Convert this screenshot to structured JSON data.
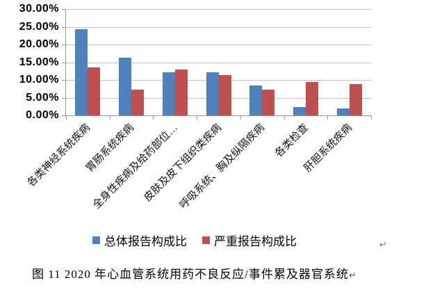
{
  "chart_data": {
    "type": "bar",
    "title": "",
    "xlabel": "",
    "ylabel": "",
    "categories": [
      "各类神经系统疾病",
      "胃肠系统疾病",
      "全身性疾病及给药部位…",
      "皮肤及皮下组织类疾病",
      "呼吸系统、胸及纵隔疾病",
      "各类检查",
      "肝胆系统疾病"
    ],
    "series": [
      {
        "name": "总体报告构成比",
        "color": "#4F81BD",
        "values": [
          24.4,
          16.3,
          12.2,
          12.1,
          8.4,
          2.4,
          1.9
        ]
      },
      {
        "name": "严重报告构成比",
        "color": "#C0504D",
        "values": [
          13.5,
          7.2,
          13.0,
          11.3,
          7.2,
          9.5,
          8.9
        ]
      }
    ],
    "value_unit": "%",
    "ylim": [
      0,
      30
    ],
    "ytick_step": 5,
    "ytick_labels": [
      "0.00%",
      "5.00%",
      "10.00%",
      "15.00%",
      "20.00%",
      "25.00%",
      "30.00%"
    ],
    "grid": true,
    "legend_position": "bottom"
  },
  "caption": {
    "text": "图 11  2020 年心血管系统用药不良反应/事件累及器官系统",
    "paragraph_mark": "↵"
  },
  "page": {
    "floating_paragraph_mark": "↵"
  },
  "colors": {
    "axis": "#969696",
    "gridline": "#BFBFBF",
    "background": "#FFFFFF",
    "series_total": "#4F81BD",
    "series_severe": "#C0504D"
  }
}
